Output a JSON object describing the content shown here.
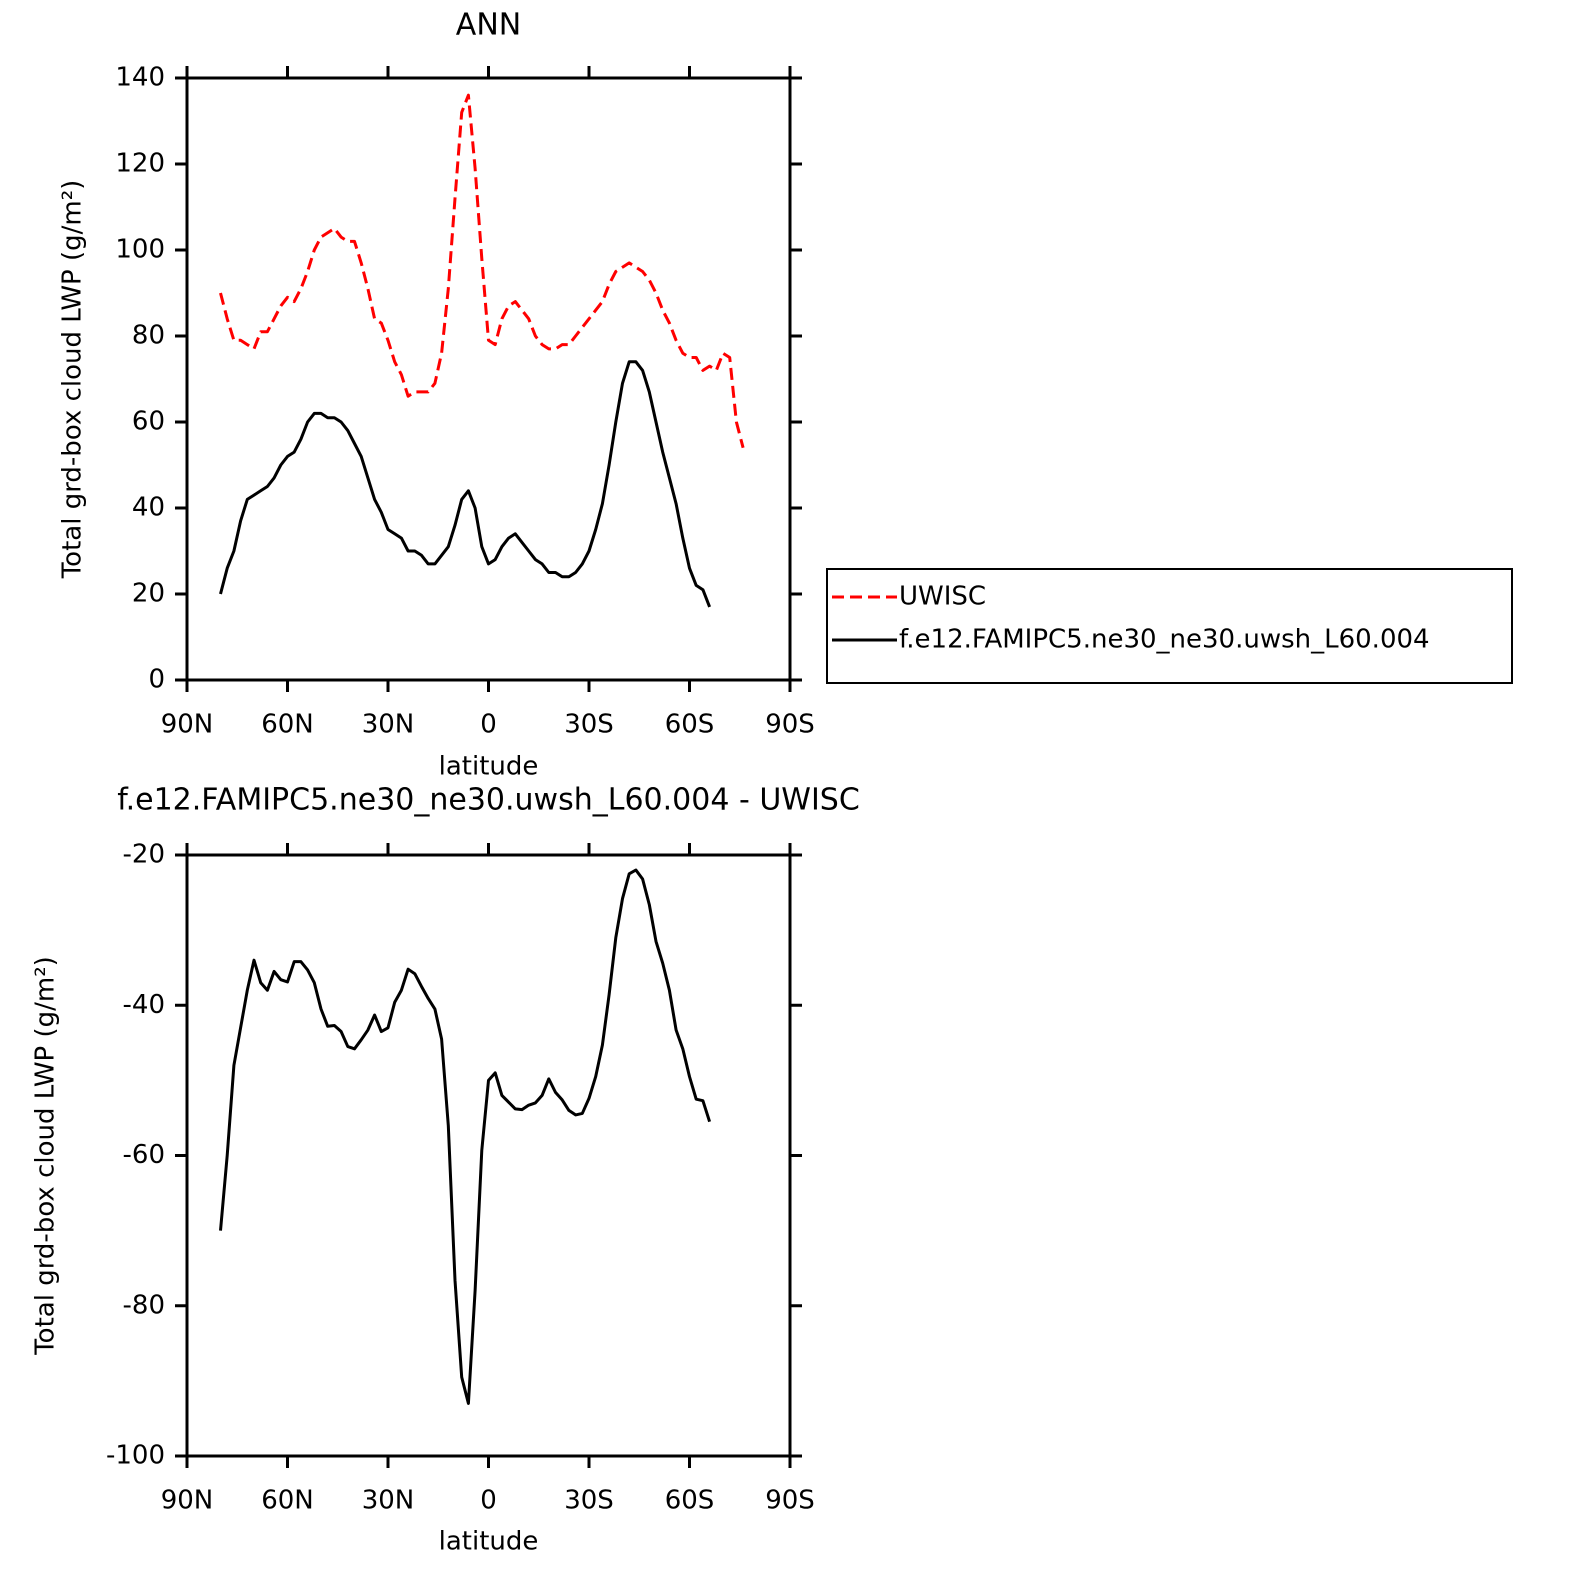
{
  "chart_data": [
    {
      "type": "line",
      "title": "ANN",
      "xlabel": "latitude",
      "ylabel": "Total grd-box cloud LWP (g/m²)",
      "x": [
        80,
        78,
        76,
        74,
        72,
        70,
        68,
        66,
        64,
        62,
        60,
        58,
        56,
        54,
        52,
        50,
        48,
        46,
        44,
        42,
        40,
        38,
        36,
        34,
        32,
        30,
        28,
        26,
        24,
        22,
        20,
        18,
        16,
        14,
        12,
        10,
        8,
        6,
        4,
        2,
        0,
        -2,
        -4,
        -6,
        -8,
        -10,
        -12,
        -14,
        -16,
        -18,
        -20,
        -22,
        -24,
        -26,
        -28,
        -30,
        -32,
        -34,
        -36,
        -38,
        -40,
        -42,
        -44,
        -46,
        -48,
        -50,
        -52,
        -54,
        -56,
        -58,
        -60,
        -62,
        -64,
        -66,
        -68,
        -70,
        -72,
        -74,
        -76
      ],
      "series": [
        {
          "name": "UWISC",
          "color": "#ff0000",
          "line_style": "dashed",
          "values": [
            90,
            84,
            79,
            79,
            78,
            77,
            81,
            81,
            84,
            87,
            89,
            88,
            91,
            95,
            100,
            103,
            104,
            105,
            103,
            102,
            102,
            97,
            91,
            84,
            83,
            79,
            74,
            71,
            66,
            67,
            67,
            67,
            69,
            76,
            91,
            112,
            132,
            136,
            119,
            98,
            79,
            78,
            84,
            87,
            88,
            86,
            84,
            80,
            78,
            77,
            77,
            78,
            78,
            80,
            82,
            84,
            86,
            88,
            92,
            95,
            96,
            97,
            96,
            95,
            93,
            90,
            86,
            83,
            79,
            76,
            75,
            75,
            72,
            73,
            72,
            76,
            75,
            60,
            54
          ]
        },
        {
          "name": "f.e12.FAMIPC5.ne30_ne30.uwsh_L60.004",
          "color": "#000000",
          "line_style": "solid",
          "values": [
            20,
            26,
            30,
            37,
            42,
            43,
            44,
            45,
            47,
            50,
            52,
            53,
            56,
            60,
            62,
            62,
            61,
            61,
            60,
            58,
            55,
            52,
            47,
            42,
            39,
            35,
            34,
            33,
            30,
            30,
            29,
            27,
            27,
            29,
            31,
            36,
            42,
            44,
            40,
            31,
            27,
            28,
            31,
            33,
            34,
            32,
            30,
            28,
            27,
            25,
            25,
            24,
            24,
            25,
            27,
            30,
            35,
            41,
            50,
            60,
            69,
            74,
            74,
            72,
            67,
            60,
            53,
            47,
            41,
            33,
            26,
            22,
            21,
            17,
            null,
            null,
            null,
            null,
            null
          ]
        }
      ],
      "xlim": [
        90,
        -90
      ],
      "xticks": [
        {
          "value": 90,
          "label": "90N"
        },
        {
          "value": 60,
          "label": "60N"
        },
        {
          "value": 30,
          "label": "30N"
        },
        0,
        {
          "value": -30,
          "label": "30S"
        },
        {
          "value": -60,
          "label": "60S"
        },
        {
          "value": -90,
          "label": "90S"
        }
      ],
      "ylim": [
        0,
        140
      ],
      "yticks": [
        0,
        20,
        40,
        60,
        80,
        100,
        120,
        140
      ],
      "legend": "right"
    },
    {
      "type": "line",
      "title": "f.e12.FAMIPC5.ne30_ne30.uwsh_L60.004 - UWISC",
      "xlabel": "latitude",
      "ylabel": "Total grd-box cloud LWP (g/m²)",
      "x": [
        80,
        78,
        76,
        74,
        72,
        70,
        68,
        66,
        64,
        62,
        60,
        58,
        56,
        54,
        52,
        50,
        48,
        46,
        44,
        42,
        40,
        38,
        36,
        34,
        32,
        30,
        28,
        26,
        24,
        22,
        20,
        18,
        16,
        14,
        12,
        10,
        8,
        6,
        4,
        2,
        0,
        -2,
        -4,
        -6,
        -8,
        -10,
        -12,
        -14,
        -16,
        -18,
        -20,
        -22,
        -24,
        -26,
        -28,
        -30,
        -32,
        -34,
        -36,
        -38,
        -40,
        -42,
        -44,
        -46,
        -48,
        -50,
        -52,
        -54,
        -56,
        -58,
        -60,
        -62,
        -64,
        -66,
        -68,
        -70,
        -72,
        -74,
        -76
      ],
      "color": "#000000",
      "values": [
        -70,
        -60,
        -48,
        -43,
        -38,
        -34,
        -37,
        -38,
        -35.5,
        -36.6,
        -36.9,
        -34.2,
        -34.2,
        -35.3,
        -37,
        -40.5,
        -42.8,
        -42.7,
        -43.5,
        -45.5,
        -45.8,
        -44.6,
        -43.3,
        -41.3,
        -43.5,
        -43,
        -39.6,
        -38,
        -35.2,
        -35.8,
        -37.5,
        -39.1,
        -40.5,
        -44.5,
        -56,
        -76.6,
        -89.5,
        -93,
        -78,
        -59.3,
        -50,
        -49,
        -52,
        -52.9,
        -53.8,
        -53.9,
        -53.3,
        -53,
        -52,
        -49.8,
        -51.6,
        -52.6,
        -54,
        -54.6,
        -54.4,
        -52.4,
        -49.5,
        -45.3,
        -38.6,
        -31,
        -25.8,
        -22.5,
        -22,
        -23.2,
        -26.6,
        -31.5,
        -34.4,
        -38,
        -43.3,
        -45.8,
        -49.5,
        -52.5,
        -52.7,
        -55.5,
        null,
        null,
        null,
        null,
        null
      ],
      "xlim": [
        90,
        -90
      ],
      "xticks": [
        {
          "value": 90,
          "label": "90N"
        },
        {
          "value": 60,
          "label": "60N"
        },
        {
          "value": 30,
          "label": "30N"
        },
        0,
        {
          "value": -30,
          "label": "30S"
        },
        {
          "value": -60,
          "label": "60S"
        },
        {
          "value": -90,
          "label": "90S"
        }
      ],
      "ylim": [
        -100,
        -20
      ],
      "yticks": [
        -100,
        -80,
        -60,
        -40,
        -20
      ]
    }
  ]
}
